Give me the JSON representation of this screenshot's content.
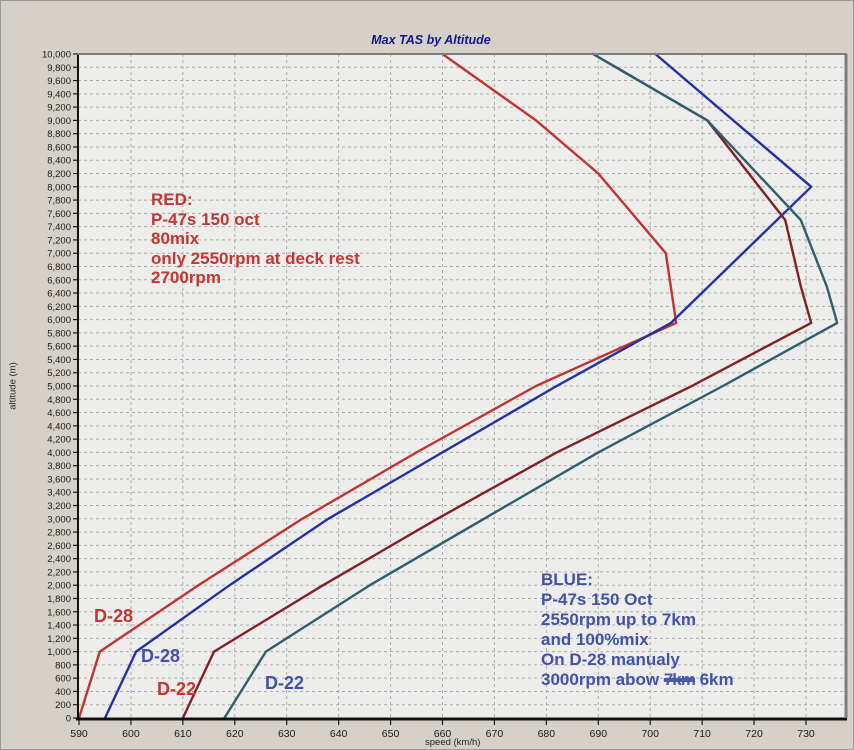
{
  "chart": {
    "title": "Max TAS by Altitude",
    "x_axis": {
      "label": "speed (km/h)",
      "min": 590,
      "max": 730,
      "step": 10
    },
    "y_axis": {
      "label": "altitude (m)",
      "min": 0,
      "max": 10000,
      "step": 200
    }
  },
  "chart_data": {
    "type": "line",
    "title": "Max TAS by Altitude",
    "xlabel": "speed (km/h)",
    "ylabel": "altitude (m)",
    "xlim": [
      590,
      737
    ],
    "ylim": [
      0,
      10000
    ],
    "grid": "dashed, both axes",
    "legend_position": "none (in-plot text labels)",
    "x_ticks_step": 10,
    "y_ticks_step": 200,
    "series": [
      {
        "name": "D-28 (red: P-47 150 oct, 80%mix, 2550rpm at deck / 2700rpm)",
        "color": "#bf3531",
        "points_speed_alt": [
          [
            590,
            0
          ],
          [
            594,
            1000
          ],
          [
            613,
            2000
          ],
          [
            633,
            3000
          ],
          [
            655,
            4000
          ],
          [
            678,
            5000
          ],
          [
            705,
            5950
          ],
          [
            703,
            7000
          ],
          [
            690,
            8200
          ],
          [
            678,
            9000
          ],
          [
            660,
            10000
          ]
        ]
      },
      {
        "name": "D-28 (blue: P-47 150 Oct, 2550rpm to 7km, 100%mix, manual 3000rpm above 6km)",
        "color": "#2531a0",
        "points_speed_alt": [
          [
            595,
            0
          ],
          [
            601,
            1000
          ],
          [
            619,
            2000
          ],
          [
            638,
            3000
          ],
          [
            660,
            4000
          ],
          [
            682,
            5000
          ],
          [
            704,
            5950
          ],
          [
            731,
            8000
          ],
          [
            701,
            10000
          ]
        ]
      },
      {
        "name": "D-22 (red: P-47 150 oct, 80%mix)",
        "color": "#822125",
        "points_speed_alt": [
          [
            610,
            0
          ],
          [
            616,
            1000
          ],
          [
            637,
            2000
          ],
          [
            659,
            3000
          ],
          [
            682,
            4000
          ],
          [
            708,
            5000
          ],
          [
            731,
            5950
          ],
          [
            729,
            6500
          ],
          [
            726,
            7500
          ],
          [
            711,
            9000
          ],
          [
            689,
            10000
          ]
        ]
      },
      {
        "name": "D-22 (blue: P-47 150 Oct, 100%mix)",
        "color": "#2e5f6e",
        "points_speed_alt": [
          [
            618,
            0
          ],
          [
            626,
            1000
          ],
          [
            646,
            2000
          ],
          [
            668,
            3000
          ],
          [
            690,
            4000
          ],
          [
            714,
            5000
          ],
          [
            736,
            5950
          ],
          [
            734,
            6500
          ],
          [
            729,
            7500
          ],
          [
            711,
            9000
          ],
          [
            689,
            10000
          ]
        ]
      }
    ]
  },
  "annotations": {
    "red": {
      "lines": [
        "RED:",
        "P-47s 150 oct",
        "80mix",
        "only 2550rpm at deck rest",
        "2700rpm"
      ]
    },
    "blue": {
      "lines": [
        "BLUE:",
        "P-47s 150 Oct",
        "2550rpm up to 7km",
        "and 100%mix",
        "On D-28 manualy"
      ],
      "last_line": {
        "prefix": "3000rpm abow ",
        "struck": "7km",
        "suffix": " 6km"
      }
    }
  },
  "series_labels": {
    "red_d28": "D-28",
    "blue_d28": "D-28",
    "red_d22": "D-22",
    "blue_d22": "D-22"
  },
  "colors": {
    "red_line": "#bf3531",
    "navy_line": "#2531a0",
    "maroon_line": "#822125",
    "teal_line": "#2e5f6e",
    "red_text": "#c23732",
    "blue_text": "#4152a8",
    "title_text": "#16168c",
    "plot_bg": "#ededeb",
    "chart_bg": "#d5d1c9",
    "gridline": "#ababab"
  }
}
